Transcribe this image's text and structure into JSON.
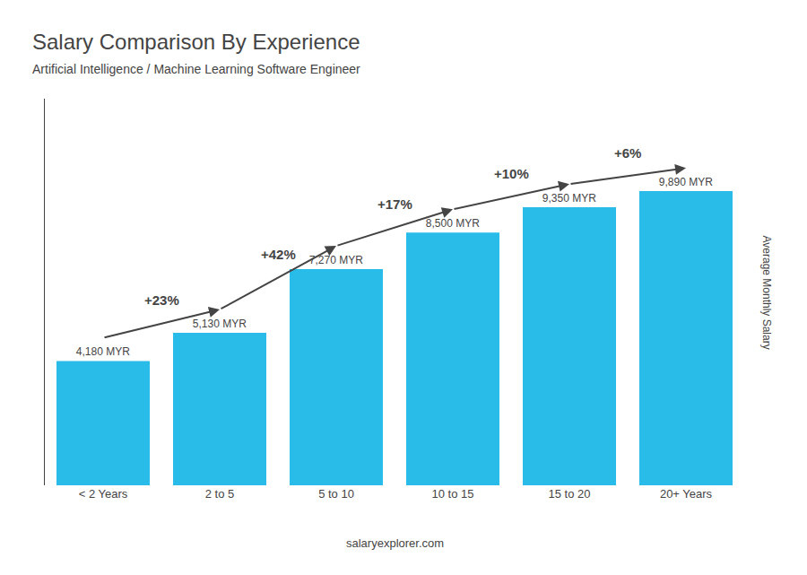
{
  "chart_data": {
    "type": "bar",
    "title": "Salary Comparison By Experience",
    "subtitle": "Artificial Intelligence / Machine Learning Software Engineer",
    "ylabel": "Average Monthly Salary",
    "categories": [
      "< 2 Years",
      "2 to 5",
      "5 to 10",
      "10 to 15",
      "15 to 20",
      "20+ Years"
    ],
    "values": [
      4180,
      5130,
      7270,
      8500,
      9350,
      9890
    ],
    "value_labels": [
      "4,180 MYR",
      "5,130 MYR",
      "7,270 MYR",
      "8,500 MYR",
      "9,350 MYR",
      "9,890 MYR"
    ],
    "data_labels": true,
    "color": "#29bce8",
    "ylim": [
      0,
      13000
    ],
    "yticks": [],
    "tick_labels": "x",
    "grid": false,
    "annotations": [
      {
        "text": "+23%",
        "from": "< 2 Years",
        "to": "2 to 5"
      },
      {
        "text": "+42%",
        "from": "2 to 5",
        "to": "5 to 10"
      },
      {
        "text": "+17%",
        "from": "5 to 10",
        "to": "10 to 15"
      },
      {
        "text": "+10%",
        "from": "10 to 15",
        "to": "15 to 20"
      },
      {
        "text": "+6%",
        "from": "15 to 20",
        "to": "20+ Years"
      },
      {
        "text": "salaryexplorer.com"
      }
    ]
  }
}
